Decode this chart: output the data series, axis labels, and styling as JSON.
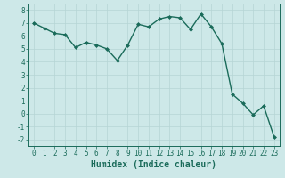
{
  "x": [
    0,
    1,
    2,
    3,
    4,
    5,
    6,
    7,
    8,
    9,
    10,
    11,
    12,
    13,
    14,
    15,
    16,
    17,
    18,
    19,
    20,
    21,
    22,
    23
  ],
  "y": [
    7.0,
    6.6,
    6.2,
    6.1,
    5.1,
    5.5,
    5.3,
    5.0,
    4.1,
    5.3,
    6.9,
    6.7,
    7.3,
    7.5,
    7.4,
    6.5,
    7.7,
    6.7,
    5.4,
    1.5,
    0.8,
    -0.1,
    0.6,
    -1.8
  ],
  "line_color": "#1a6b5a",
  "marker": "D",
  "marker_size": 2.0,
  "bg_color": "#cde8e8",
  "grid_color": "#b5d5d5",
  "xlabel": "Humidex (Indice chaleur)",
  "xlim": [
    -0.5,
    23.5
  ],
  "ylim": [
    -2.5,
    8.5
  ],
  "yticks": [
    -2,
    -1,
    0,
    1,
    2,
    3,
    4,
    5,
    6,
    7,
    8
  ],
  "xticks": [
    0,
    1,
    2,
    3,
    4,
    5,
    6,
    7,
    8,
    9,
    10,
    11,
    12,
    13,
    14,
    15,
    16,
    17,
    18,
    19,
    20,
    21,
    22,
    23
  ],
  "tick_label_size": 5.5,
  "xlabel_fontsize": 7.0,
  "line_width": 1.0
}
